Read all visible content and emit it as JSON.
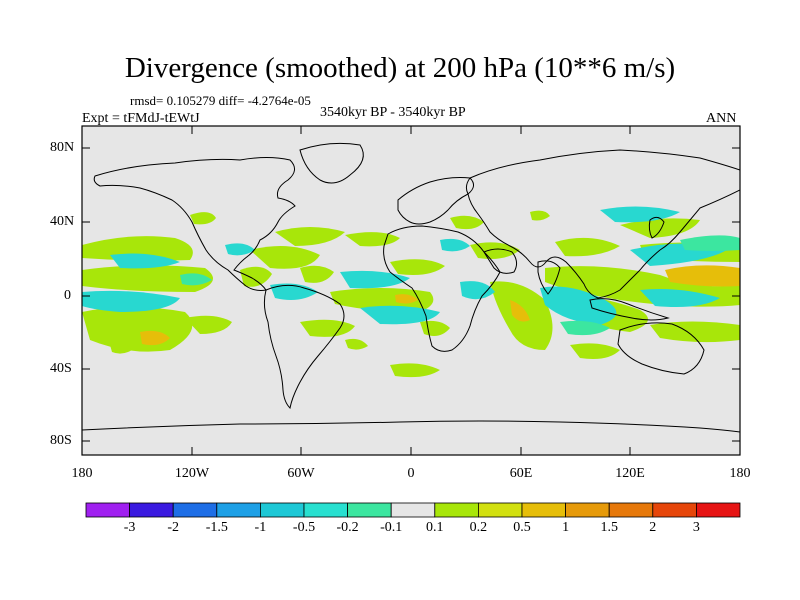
{
  "title": "Divergence (smoothed) at 200 hPa (10**6 m/s)",
  "stats": "rmsd= 0.105279 diff= -4.2764e-05",
  "experiment": "Expt = tFMdJ-tEWtJ",
  "period": "3540kyr BP - 3540kyr BP",
  "season": "ANN",
  "lat_labels": [
    "80N",
    "40N",
    "0",
    "40S",
    "80S"
  ],
  "lon_labels": [
    "180",
    "120W",
    "60W",
    "0",
    "60E",
    "120E",
    "180"
  ],
  "colorbar": {
    "labels": [
      "-3",
      "-2",
      "-1.5",
      "-1",
      "-0.5",
      "-0.2",
      "-0.1",
      "0.1",
      "0.2",
      "0.5",
      "1",
      "1.5",
      "2",
      "3"
    ],
    "colors": [
      "#a020f0",
      "#3a1ae0",
      "#1e6ee6",
      "#1ea0e6",
      "#1ec8d6",
      "#28e0d0",
      "#3ce6a0",
      "#e6e6e6",
      "#a8e60a",
      "#d2e010",
      "#e6be0a",
      "#e69a0a",
      "#e6780a",
      "#e6460a",
      "#e61414"
    ]
  },
  "colors": {
    "ocean": "#e6e6e6",
    "land": "#000000"
  }
}
